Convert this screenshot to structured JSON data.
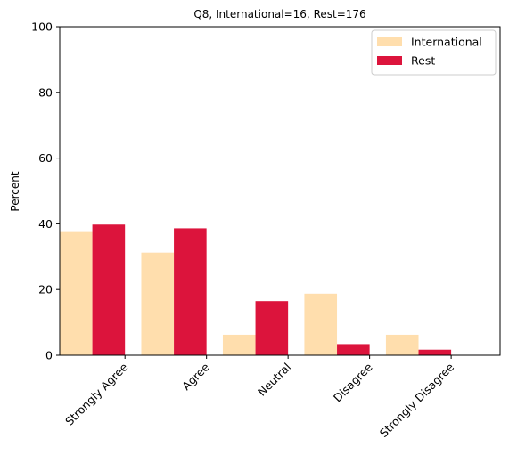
{
  "chart_data": {
    "type": "bar",
    "title": "Q8, International=16, Rest=176",
    "xlabel": "",
    "ylabel": "Percent",
    "ylim": [
      0,
      100
    ],
    "yticks": [
      0,
      20,
      40,
      60,
      80,
      100
    ],
    "grid": false,
    "legend_position": "top-right",
    "categories": [
      "Strongly Agree",
      "Agree",
      "Neutral",
      "Disagree",
      "Strongly Disagree"
    ],
    "series": [
      {
        "name": "International",
        "color": "#FFDEAD",
        "values": [
          37.5,
          31.25,
          6.25,
          18.75,
          6.25
        ]
      },
      {
        "name": "Rest",
        "color": "#DC143C",
        "values": [
          39.77,
          38.64,
          16.48,
          3.41,
          1.7
        ]
      }
    ]
  }
}
